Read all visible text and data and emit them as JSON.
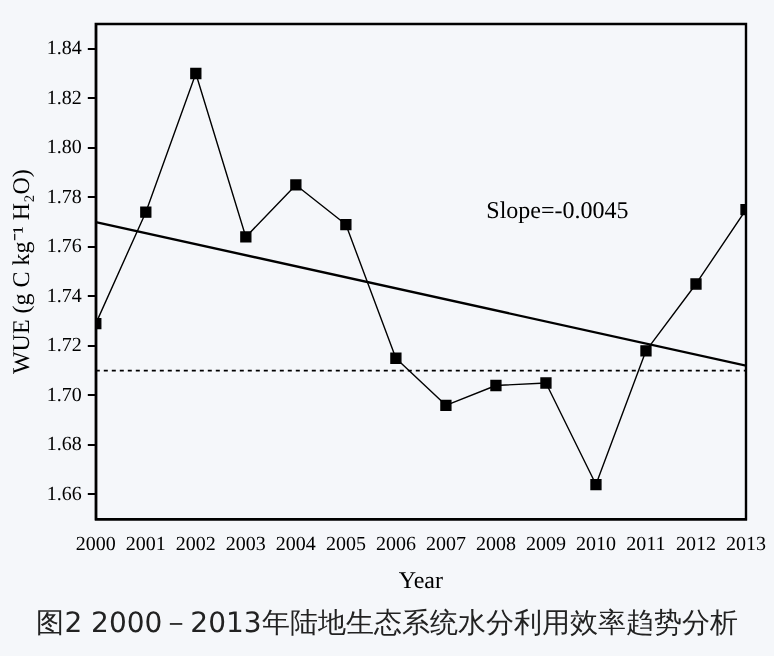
{
  "chart_data": {
    "type": "line",
    "xlabel": "Year",
    "ylabel": "WUE (g C kg⁻¹ H₂O)",
    "x": [
      2000,
      2001,
      2002,
      2003,
      2004,
      2005,
      2006,
      2007,
      2008,
      2009,
      2010,
      2011,
      2012,
      2013
    ],
    "series": [
      {
        "color": "#000000",
        "marker": "square",
        "values": [
          1.729,
          1.774,
          1.83,
          1.764,
          1.785,
          1.769,
          1.715,
          1.696,
          1.704,
          1.705,
          1.664,
          1.718,
          1.745,
          1.775
        ]
      },
      {
        "type": "line",
        "color": "#000000",
        "marker": "none",
        "x": [
          2000,
          2013
        ],
        "values": [
          1.77,
          1.712
        ]
      }
    ],
    "xlim": [
      2000,
      2013
    ],
    "xticks": [
      2000,
      2001,
      2002,
      2003,
      2004,
      2005,
      2006,
      2007,
      2008,
      2009,
      2010,
      2011,
      2012,
      2013
    ],
    "ylim": [
      1.65,
      1.85
    ],
    "yticks": [
      1.66,
      1.68,
      {
        "value": 1.7,
        "label": "1.70"
      },
      1.72,
      1.74,
      1.76,
      1.78,
      {
        "value": 1.8,
        "label": "1.80"
      },
      1.82,
      1.84
    ],
    "ref_lines": [
      {
        "axis": "y",
        "value": 1.71,
        "line_style": "dotted",
        "color": "#000000"
      }
    ],
    "annotations": [
      "Slope=-0.0045",
      "图2 2000－2013年陆地生态系统水分利用效率趋势分析"
    ],
    "grid": false,
    "legend": false
  }
}
